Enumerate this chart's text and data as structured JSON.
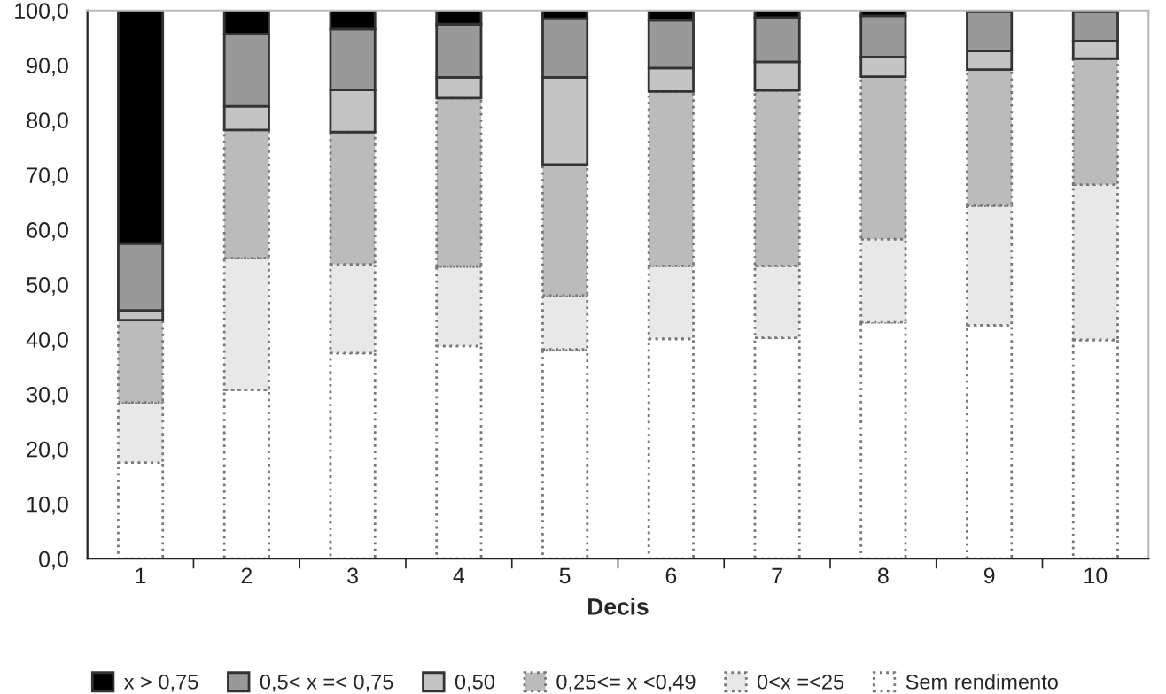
{
  "chart_data": {
    "type": "bar",
    "stacked": true,
    "xlabel": "Decis",
    "categories": [
      "1",
      "2",
      "3",
      "4",
      "5",
      "6",
      "7",
      "8",
      "9",
      "10"
    ],
    "series": [
      {
        "name": "Sem rendimento",
        "color": "#ffffff",
        "line_style": "dotted",
        "values": [
          17.5,
          30.8,
          37.5,
          38.8,
          38.2,
          40.1,
          40.3,
          43.1,
          42.6,
          39.9
        ]
      },
      {
        "name": "0<x =<25",
        "color": "#e8e8e8",
        "line_style": "dotted",
        "values": [
          11.0,
          24.0,
          16.2,
          14.5,
          9.8,
          13.3,
          13.1,
          15.2,
          21.8,
          28.3
        ]
      },
      {
        "name": "0,25<= x <0,49",
        "color": "#bbbbbb",
        "line_style": "dotted",
        "values": [
          15.0,
          23.4,
          24.1,
          30.7,
          23.9,
          31.8,
          32.0,
          29.6,
          24.8,
          23.0
        ]
      },
      {
        "name": "0,50",
        "color": "#c4c4c4",
        "line_style": "solid",
        "values": [
          1.8,
          4.3,
          7.7,
          3.8,
          15.9,
          4.3,
          5.2,
          3.6,
          3.4,
          3.2
        ]
      },
      {
        "name": "0,5< x =< 0,75",
        "color": "#999999",
        "line_style": "solid",
        "values": [
          12.2,
          13.2,
          11.1,
          9.7,
          10.7,
          8.7,
          8.1,
          7.5,
          7.2,
          5.4
        ]
      },
      {
        "name": "x > 0,75",
        "color": "#000000",
        "line_style": "solid",
        "values": [
          42.5,
          4.3,
          3.4,
          2.5,
          1.5,
          1.8,
          1.3,
          1.0,
          null,
          null
        ]
      }
    ],
    "ylim": [
      0,
      100
    ],
    "yticks": [
      {
        "value": 0,
        "label": "0,0"
      },
      {
        "value": 10,
        "label": "10,0"
      },
      {
        "value": 20,
        "label": "20,0"
      },
      {
        "value": 30,
        "label": "30,0"
      },
      {
        "value": 40,
        "label": "40,0"
      },
      {
        "value": 50,
        "label": "50,0"
      },
      {
        "value": 60,
        "label": "60,0"
      },
      {
        "value": 70,
        "label": "70,0"
      },
      {
        "value": 80,
        "label": "80,0"
      },
      {
        "value": 90,
        "label": "90,0"
      },
      {
        "value": 100,
        "label": "100,0"
      }
    ],
    "grid": false,
    "legend": "bottom"
  }
}
